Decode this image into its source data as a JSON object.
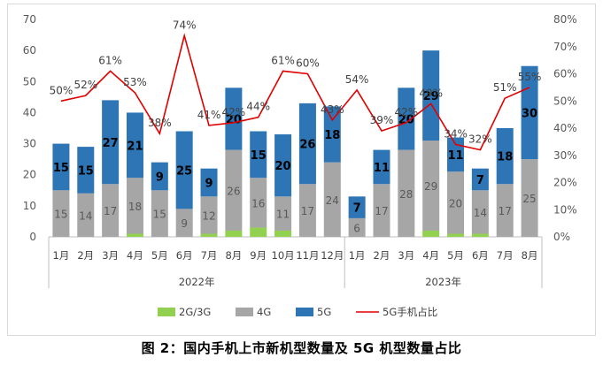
{
  "chart_data": {
    "type": "bar",
    "stacked": true,
    "secondary_line": true,
    "caption": "图 2：国内手机上市新机型数量及 5G 机型数量占比",
    "categories": [
      "1月",
      "2月",
      "3月",
      "4月",
      "5月",
      "6月",
      "7月",
      "8月",
      "9月",
      "10月",
      "11月",
      "12月",
      "1月",
      "2月",
      "3月",
      "4月",
      "5月",
      "6月",
      "7月",
      "8月"
    ],
    "groups": [
      {
        "label": "2022年",
        "count": 12
      },
      {
        "label": "2023年",
        "count": 8
      }
    ],
    "ylim": [
      0,
      70
    ],
    "y_ticks": [
      0,
      10,
      20,
      30,
      40,
      50,
      60,
      70
    ],
    "y2lim": [
      0,
      80
    ],
    "y2_ticks": [
      "0%",
      "10%",
      "20%",
      "30%",
      "40%",
      "50%",
      "60%",
      "70%",
      "80%"
    ],
    "series": [
      {
        "name": "2G/3G",
        "color": "#92d050",
        "values": [
          0,
          0,
          0,
          1,
          0,
          0,
          1,
          2,
          3,
          2,
          0,
          0,
          0,
          0,
          0,
          2,
          1,
          1,
          0,
          0
        ]
      },
      {
        "name": "4G",
        "color": "#a6a6a6",
        "values": [
          15,
          14,
          17,
          18,
          15,
          9,
          12,
          26,
          16,
          11,
          17,
          24,
          6,
          17,
          28,
          29,
          20,
          14,
          17,
          25
        ]
      },
      {
        "name": "5G",
        "color": "#2e75b6",
        "values": [
          15,
          15,
          27,
          21,
          9,
          25,
          9,
          20,
          15,
          20,
          26,
          18,
          7,
          11,
          20,
          29,
          11,
          7,
          18,
          30
        ]
      }
    ],
    "line_series": {
      "name": "5G手机占比",
      "color": "#e00000",
      "axis": "right",
      "values": [
        50,
        52,
        61,
        53,
        38,
        74,
        41,
        42,
        44,
        61,
        60,
        43,
        54,
        39,
        42,
        49,
        34,
        32,
        51,
        55
      ],
      "labels": [
        "50%",
        "52%",
        "61%",
        "53%",
        "38%",
        "74%",
        "41%",
        "42%",
        "44%",
        "61%",
        "60%",
        "43%",
        "54%",
        "39%",
        "42%",
        "49%",
        "34%",
        "32%",
        "51%",
        "55%"
      ]
    },
    "legend_position": "bottom",
    "grid": false
  }
}
